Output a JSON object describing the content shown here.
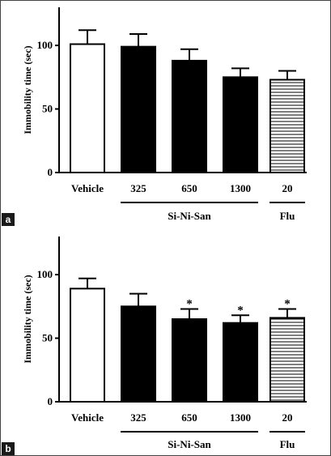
{
  "panels": [
    {
      "tag": "a",
      "ylabel": "Immobility time (sec)",
      "yticks": [
        0,
        50,
        100
      ],
      "ylim": [
        0,
        130
      ],
      "groups": [
        {
          "label": "Si-Ni-San",
          "categories": [
            1,
            3
          ]
        },
        {
          "label": "Flu",
          "categories": [
            4,
            4
          ]
        }
      ]
    },
    {
      "tag": "b",
      "ylabel": "Immobility time (sec)",
      "yticks": [
        0,
        50,
        100
      ],
      "ylim": [
        0,
        130
      ],
      "groups": [
        {
          "label": "Si-Ni-San",
          "categories": [
            1,
            3
          ]
        },
        {
          "label": "Flu",
          "categories": [
            4,
            4
          ]
        }
      ]
    }
  ],
  "chart_data": [
    {
      "type": "bar",
      "categories": [
        "Vehicle",
        "325",
        "650",
        "1300",
        "20"
      ],
      "values": [
        101,
        99,
        88,
        75,
        73
      ],
      "errors": [
        11,
        10,
        9,
        7,
        7
      ],
      "significance": [
        "",
        "",
        "",
        "",
        ""
      ],
      "bar_styles": [
        "white",
        "black",
        "black",
        "black",
        "striped"
      ],
      "ylabel": "Immobility time (sec)",
      "ylim": [
        0,
        130
      ]
    },
    {
      "type": "bar",
      "categories": [
        "Vehicle",
        "325",
        "650",
        "1300",
        "20"
      ],
      "values": [
        89,
        75,
        65,
        62,
        66
      ],
      "errors": [
        8,
        10,
        8,
        6,
        7
      ],
      "significance": [
        "",
        "",
        "*",
        "*",
        "*"
      ],
      "bar_styles": [
        "white",
        "black",
        "black",
        "black",
        "striped"
      ],
      "ylabel": "Immobility time (sec)",
      "ylim": [
        0,
        130
      ]
    }
  ]
}
